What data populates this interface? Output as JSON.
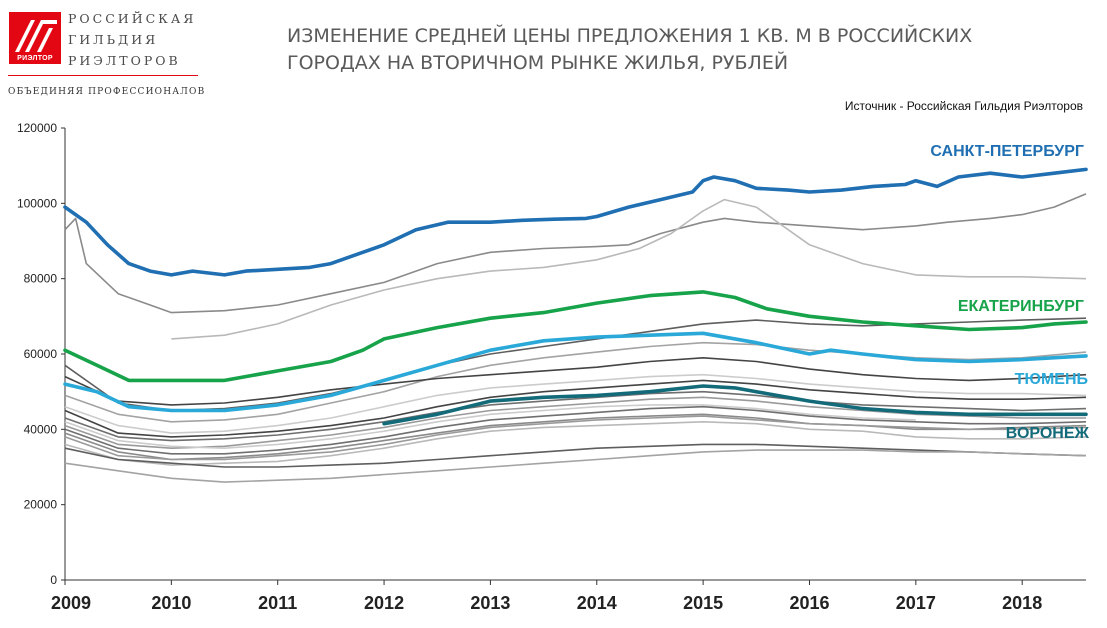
{
  "logo": {
    "badge": "РИЭЛТОР",
    "name_lines": [
      "РОССИЙСКАЯ",
      "ГИЛЬДИЯ",
      "РИЭЛТОРОВ"
    ],
    "tagline": "ОБЪЕДИНЯЯ ПРОФЕССИОНАЛОВ",
    "brand_color": "#e30613"
  },
  "header": {
    "title_line1": "ИЗМЕНЕНИЕ СРЕДНЕЙ ЦЕНЫ ПРЕДЛОЖЕНИЯ 1 КВ. М В РОССИЙСКИХ",
    "title_line2": "ГОРОДАХ НА ВТОРИЧНОМ РЫНКЕ ЖИЛЬЯ, РУБЛЕЙ",
    "source": "Источник - Российская Гильдия Риэлторов"
  },
  "chart_data": {
    "type": "line",
    "x_unit": "year",
    "xlim": [
      2009,
      2018.6
    ],
    "ylim": [
      0,
      120000
    ],
    "y_ticks": [
      "0",
      "20000",
      "40000",
      "60000",
      "80000",
      "100000",
      "120000"
    ],
    "x_ticks": [
      "2009",
      "2010",
      "2011",
      "2012",
      "2013",
      "2014",
      "2015",
      "2016",
      "2017",
      "2018"
    ],
    "grid": false,
    "highlighted": [
      {
        "name": "САНКТ-ПЕТЕРБУРГ",
        "color": "#1f6fb2",
        "x": [
          2009,
          2009.2,
          2009.4,
          2009.6,
          2009.8,
          2010,
          2010.2,
          2010.5,
          2010.7,
          2011,
          2011.3,
          2011.5,
          2011.8,
          2012,
          2012.3,
          2012.6,
          2012.9,
          2013,
          2013.3,
          2013.6,
          2013.9,
          2014,
          2014.3,
          2014.6,
          2014.9,
          2015,
          2015.1,
          2015.3,
          2015.5,
          2015.8,
          2016,
          2016.3,
          2016.6,
          2016.9,
          2017,
          2017.2,
          2017.4,
          2017.7,
          2018,
          2018.3,
          2018.6
        ],
        "y": [
          99000,
          95000,
          89000,
          84000,
          82000,
          81000,
          82000,
          81000,
          82000,
          82500,
          83000,
          84000,
          87000,
          89000,
          93000,
          95000,
          95000,
          95000,
          95500,
          95800,
          96000,
          96500,
          99000,
          101000,
          103000,
          106000,
          107000,
          106000,
          104000,
          103500,
          103000,
          103500,
          104500,
          105000,
          106000,
          104500,
          107000,
          108000,
          107000,
          108000,
          109000
        ]
      },
      {
        "name": "ЕКАТЕРИНБУРГ",
        "color": "#17a34a",
        "x": [
          2009,
          2009.3,
          2009.6,
          2010,
          2010.5,
          2011,
          2011.5,
          2011.8,
          2012,
          2012.5,
          2013,
          2013.5,
          2014,
          2014.5,
          2015,
          2015.3,
          2015.6,
          2016,
          2016.5,
          2017,
          2017.5,
          2018,
          2018.3,
          2018.6
        ],
        "y": [
          61000,
          57000,
          53000,
          53000,
          53000,
          55500,
          58000,
          61000,
          64000,
          67000,
          69500,
          71000,
          73500,
          75500,
          76500,
          75000,
          72000,
          70000,
          68500,
          67500,
          66500,
          67000,
          68000,
          68500
        ]
      },
      {
        "name": "ТЮМЕНЬ",
        "color": "#2aa8d8",
        "x": [
          2009,
          2009.3,
          2009.6,
          2010,
          2010.5,
          2011,
          2011.5,
          2012,
          2012.5,
          2013,
          2013.5,
          2014,
          2014.5,
          2015,
          2015.5,
          2016,
          2016.2,
          2016.5,
          2017,
          2017.5,
          2018,
          2018.6
        ],
        "y": [
          52000,
          50000,
          46000,
          45000,
          45000,
          46500,
          49000,
          53000,
          57000,
          61000,
          63500,
          64500,
          65000,
          65500,
          63000,
          60000,
          61000,
          60000,
          58500,
          58000,
          58500,
          59500
        ]
      },
      {
        "name": "ВОРОНЕЖ",
        "color": "#136b7a",
        "x": [
          2012,
          2012.5,
          2013,
          2013.5,
          2014,
          2014.5,
          2015,
          2015.3,
          2015.6,
          2016,
          2016.5,
          2017,
          2017.5,
          2018,
          2018.6
        ],
        "y": [
          41500,
          44000,
          47500,
          48500,
          49000,
          50000,
          51500,
          51000,
          49500,
          47500,
          45500,
          44500,
          44000,
          44000,
          44000
        ]
      }
    ],
    "background_series": [
      {
        "x": [
          2009,
          2009.1,
          2009.2,
          2009.5,
          2009.8,
          2010,
          2010.5,
          2011,
          2011.5,
          2012,
          2012.5,
          2013,
          2013.5,
          2014,
          2014.3,
          2014.6,
          2015,
          2015.2,
          2015.5,
          2016,
          2016.5,
          2017,
          2017.3,
          2017.7,
          2018,
          2018.3,
          2018.6
        ],
        "y": [
          93000,
          96000,
          84000,
          76000,
          73000,
          71000,
          71500,
          73000,
          76000,
          79000,
          84000,
          87000,
          88000,
          88500,
          89000,
          92000,
          95000,
          96000,
          95000,
          94000,
          93000,
          94000,
          95000,
          96000,
          97000,
          99000,
          102500
        ]
      },
      {
        "x": [
          2010,
          2010.5,
          2011,
          2011.5,
          2012,
          2012.5,
          2013,
          2013.5,
          2014,
          2014.4,
          2014.7,
          2015,
          2015.2,
          2015.5,
          2016,
          2016.5,
          2017,
          2017.5,
          2018,
          2018.6
        ],
        "y": [
          64000,
          65000,
          68000,
          73000,
          77000,
          80000,
          82000,
          83000,
          85000,
          88000,
          92000,
          98000,
          101000,
          99000,
          89000,
          84000,
          81000,
          80500,
          80500,
          80000
        ]
      },
      {
        "x": [
          2009,
          2009.5,
          2010,
          2010.5,
          2011,
          2011.5,
          2012,
          2012.5,
          2013,
          2013.5,
          2014,
          2014.5,
          2015,
          2015.5,
          2016,
          2016.5,
          2017,
          2017.5,
          2018,
          2018.6
        ],
        "y": [
          57000,
          47000,
          45000,
          45500,
          47000,
          49500,
          53000,
          57000,
          60000,
          62000,
          64000,
          66000,
          68000,
          69000,
          68000,
          67500,
          68000,
          68500,
          69000,
          69500
        ]
      },
      {
        "x": [
          2009,
          2009.5,
          2010,
          2010.5,
          2011,
          2011.5,
          2012,
          2012.5,
          2013,
          2013.5,
          2014,
          2014.5,
          2015,
          2015.5,
          2016,
          2016.5,
          2017,
          2017.5,
          2018,
          2018.6
        ],
        "y": [
          49000,
          44000,
          42000,
          42500,
          44000,
          47000,
          50000,
          54000,
          57000,
          59000,
          60500,
          62000,
          63000,
          62500,
          61000,
          60000,
          59000,
          58500,
          59000,
          60500
        ]
      },
      {
        "x": [
          2009,
          2009.5,
          2010,
          2010.5,
          2011,
          2011.5,
          2012,
          2012.5,
          2013,
          2013.5,
          2014,
          2014.5,
          2015,
          2015.5,
          2016,
          2016.5,
          2017,
          2017.5,
          2018,
          2018.6
        ],
        "y": [
          54000,
          47500,
          46500,
          47000,
          48500,
          50500,
          52000,
          53500,
          54500,
          55500,
          56500,
          58000,
          59000,
          58000,
          56000,
          54500,
          53500,
          53000,
          53500,
          54500
        ]
      },
      {
        "x": [
          2009,
          2009.5,
          2010,
          2010.5,
          2011,
          2011.5,
          2012,
          2012.5,
          2013,
          2013.5,
          2014,
          2014.5,
          2015,
          2015.5,
          2016,
          2016.5,
          2017,
          2017.5,
          2018,
          2018.6
        ],
        "y": [
          46000,
          41000,
          39000,
          39500,
          41000,
          43000,
          46000,
          49000,
          51000,
          52000,
          53000,
          54000,
          54500,
          53500,
          52000,
          51000,
          50000,
          49500,
          49500,
          49000
        ]
      },
      {
        "x": [
          2009,
          2009.5,
          2010,
          2010.5,
          2011,
          2011.5,
          2012,
          2012.5,
          2013,
          2013.5,
          2014,
          2014.5,
          2015,
          2015.5,
          2016,
          2016.5,
          2017,
          2017.5,
          2018,
          2018.6
        ],
        "y": [
          43000,
          38000,
          37000,
          37500,
          38500,
          40000,
          42000,
          44500,
          46500,
          47500,
          48500,
          49500,
          50000,
          49000,
          47500,
          46500,
          46000,
          45500,
          45000,
          45500
        ]
      },
      {
        "x": [
          2009,
          2009.5,
          2010,
          2010.5,
          2011,
          2011.5,
          2012,
          2012.5,
          2013,
          2013.5,
          2014,
          2014.5,
          2015,
          2015.5,
          2016,
          2016.5,
          2017,
          2017.5,
          2018,
          2018.6
        ],
        "y": [
          41000,
          36000,
          35000,
          35500,
          37000,
          38500,
          40500,
          43000,
          45000,
          46000,
          47000,
          48000,
          48500,
          47500,
          46000,
          45000,
          44000,
          43500,
          43000,
          43000
        ]
      },
      {
        "x": [
          2009,
          2009.5,
          2010,
          2010.5,
          2011,
          2011.5,
          2012,
          2012.5,
          2013,
          2013.5,
          2014,
          2014.5,
          2015,
          2015.5,
          2016,
          2016.5,
          2017,
          2017.5,
          2018,
          2018.6
        ],
        "y": [
          39000,
          34000,
          32000,
          32500,
          33500,
          35000,
          37000,
          39000,
          41000,
          42000,
          43000,
          43500,
          44000,
          43000,
          41500,
          41000,
          40000,
          40000,
          40500,
          41000
        ]
      },
      {
        "x": [
          2009,
          2009.5,
          2010,
          2010.5,
          2011,
          2011.5,
          2012,
          2012.5,
          2013,
          2013.5,
          2014,
          2014.5,
          2015,
          2015.5,
          2016,
          2016.5,
          2017,
          2017.5,
          2018,
          2018.6
        ],
        "y": [
          36000,
          32000,
          30500,
          31000,
          31500,
          33000,
          35000,
          37500,
          39500,
          40500,
          41000,
          41500,
          42000,
          41500,
          40000,
          39500,
          38000,
          37500,
          37500,
          38000
        ]
      },
      {
        "x": [
          2009,
          2009.5,
          2010,
          2010.5,
          2011,
          2011.5,
          2012,
          2012.5,
          2013,
          2013.5,
          2014,
          2014.5,
          2015,
          2015.5,
          2016,
          2016.5,
          2017,
          2017.5,
          2018,
          2018.6
        ],
        "y": [
          35000,
          32000,
          31000,
          30000,
          30000,
          30500,
          31000,
          32000,
          33000,
          34000,
          35000,
          35500,
          36000,
          36000,
          35500,
          35000,
          34500,
          34000,
          33500,
          33000
        ]
      },
      {
        "x": [
          2009,
          2009.5,
          2010,
          2010.5,
          2011,
          2011.5,
          2012,
          2012.5,
          2013,
          2013.5,
          2014,
          2014.5,
          2015,
          2015.5,
          2016,
          2016.5,
          2017,
          2017.5,
          2018,
          2018.6
        ],
        "y": [
          31000,
          29000,
          27000,
          26000,
          26500,
          27000,
          28000,
          29000,
          30000,
          31000,
          32000,
          33000,
          34000,
          34500,
          34500,
          34500,
          34000,
          34000,
          33500,
          33000
        ]
      },
      {
        "x": [
          2009,
          2009.5,
          2010,
          2010.5,
          2011,
          2011.5,
          2012,
          2012.5,
          2013,
          2013.5,
          2014,
          2014.5,
          2015,
          2015.5,
          2016,
          2016.5,
          2017,
          2017.5,
          2018,
          2018.6
        ],
        "y": [
          45000,
          39000,
          38000,
          38500,
          39500,
          41000,
          43000,
          46000,
          48500,
          50000,
          51000,
          52000,
          53000,
          52000,
          50500,
          49500,
          48500,
          48000,
          48000,
          48500
        ]
      },
      {
        "x": [
          2009,
          2009.5,
          2010,
          2010.5,
          2011,
          2011.5,
          2012,
          2012.5,
          2013,
          2013.5,
          2014,
          2014.5,
          2015,
          2015.5,
          2016,
          2016.5,
          2017
        ],
        "y": [
          42000,
          37000,
          35500,
          35000,
          36000,
          37500,
          39500,
          42000,
          44000,
          45000,
          46000,
          46500,
          46500,
          45500,
          44000,
          43000,
          42500
        ]
      },
      {
        "x": [
          2009,
          2009.5,
          2010,
          2010.5,
          2011,
          2011.5,
          2012,
          2012.5,
          2013,
          2013.5,
          2014,
          2014.5,
          2015,
          2015.5,
          2016,
          2016.5,
          2017,
          2017.5,
          2018,
          2018.6
        ],
        "y": [
          40000,
          35000,
          33500,
          33500,
          34500,
          36000,
          38000,
          40500,
          42500,
          43500,
          44500,
          45500,
          46000,
          45000,
          43500,
          42500,
          42000,
          41500,
          41500,
          42000
        ]
      },
      {
        "x": [
          2009,
          2009.5,
          2010,
          2010.5,
          2011,
          2011.5,
          2012,
          2012.5,
          2013,
          2013.5,
          2014,
          2014.5,
          2015,
          2015.5,
          2016,
          2016.5,
          2017,
          2017.5,
          2018,
          2018.6
        ],
        "y": [
          38000,
          33000,
          32000,
          32000,
          33000,
          34000,
          36000,
          38500,
          40500,
          41500,
          42500,
          43000,
          43500,
          42500,
          41500,
          41000,
          40500,
          40000,
          40000,
          40500
        ]
      }
    ]
  }
}
